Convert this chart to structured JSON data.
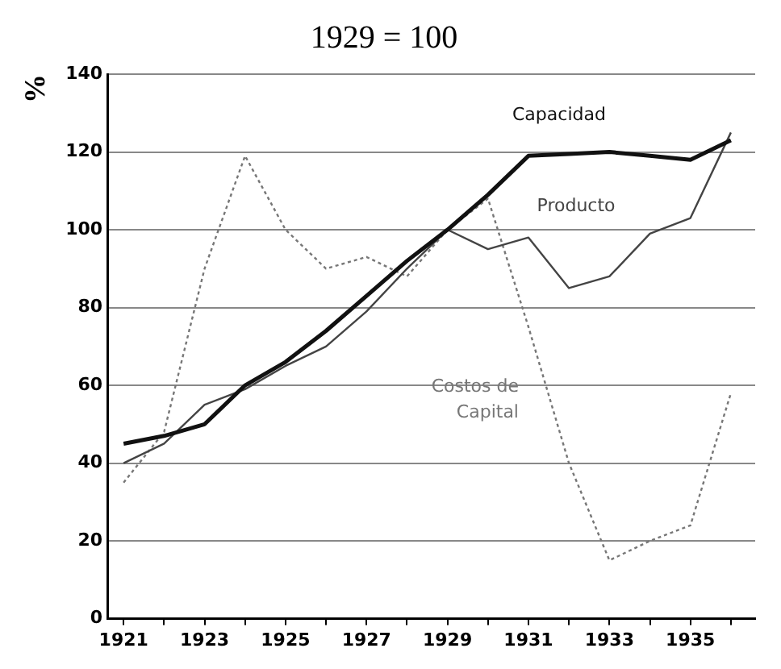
{
  "chart_data": {
    "type": "line",
    "title": "1929 = 100",
    "ylabel": "%",
    "x": [
      1921,
      1922,
      1923,
      1924,
      1925,
      1926,
      1927,
      1928,
      1929,
      1930,
      1931,
      1932,
      1933,
      1934,
      1935,
      1936
    ],
    "series": [
      {
        "name": "Capacidad",
        "color": "#111111",
        "line_style": "solid",
        "values": [
          45,
          47,
          50,
          60,
          66,
          74,
          83,
          92,
          100,
          109,
          119,
          119.5,
          120,
          119,
          118,
          123
        ]
      },
      {
        "name": "Producto",
        "color": "#444444",
        "line_style": "solid",
        "values": [
          40,
          45,
          55,
          59,
          65,
          70,
          79,
          90,
          100,
          95,
          98,
          85,
          88,
          99,
          103,
          125
        ]
      },
      {
        "name": "Costos de Capital",
        "color": "#777777",
        "line_style": "dotted",
        "values": [
          35,
          48,
          90,
          119,
          100,
          90,
          93,
          88,
          100,
          108,
          75,
          40,
          15,
          20,
          24,
          58
        ]
      }
    ],
    "xlim": [
      1920.6,
      1936.6
    ],
    "xticks": [
      1921,
      {
        "value": 1922,
        "label": null
      },
      1923,
      {
        "value": 1924,
        "label": null
      },
      1925,
      {
        "value": 1926,
        "label": null
      },
      1927,
      {
        "value": 1928,
        "label": null
      },
      1929,
      {
        "value": 1930,
        "label": null
      },
      1931,
      {
        "value": 1932,
        "label": null
      },
      1933,
      {
        "value": 1934,
        "label": null
      },
      1935,
      {
        "value": 1936,
        "label": null
      }
    ],
    "ylim": [
      0,
      140
    ],
    "yticks": [
      0,
      20,
      40,
      60,
      80,
      100,
      120,
      140
    ],
    "grid": "y",
    "legend": false,
    "marker": "none"
  }
}
